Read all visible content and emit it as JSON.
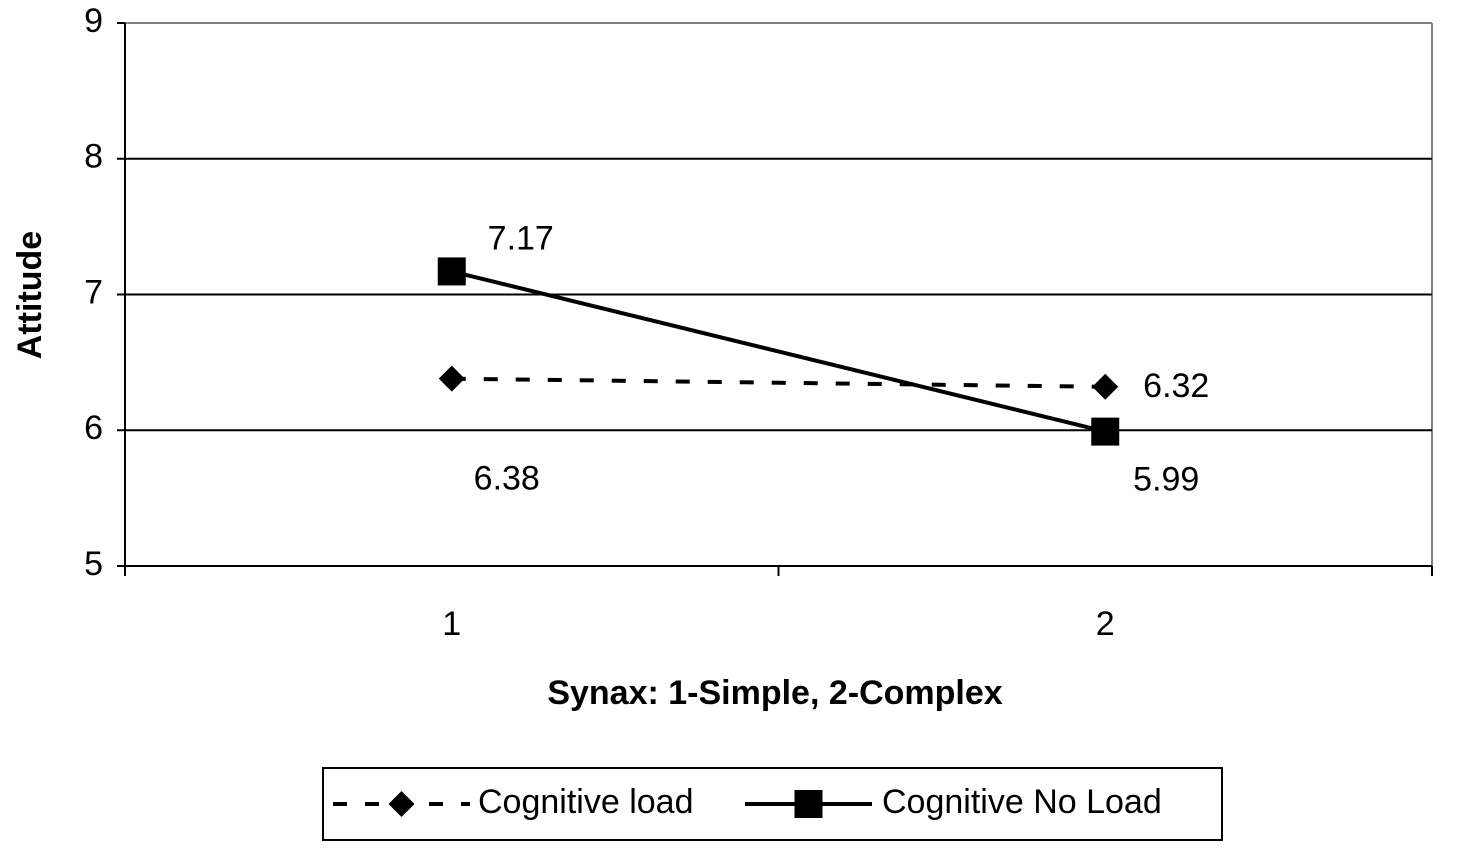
{
  "chart_data": {
    "type": "line",
    "x_label": "Synax: 1-Simple, 2-Complex",
    "y_label": "Attitude",
    "categories": [
      "1",
      "2"
    ],
    "series": [
      {
        "name": "Cognitive load",
        "color": "#000000",
        "line_style": "dashed",
        "marker": "diamond",
        "values": [
          6.38,
          6.32
        ]
      },
      {
        "name": "Cognitive No Load",
        "color": "#000000",
        "line_style": "solid",
        "marker": "square",
        "values": [
          7.17,
          5.99
        ]
      }
    ],
    "ylim": [
      5,
      9
    ],
    "yticks": [
      5,
      6,
      7,
      8,
      9
    ],
    "grid": true,
    "legend": "bottom"
  }
}
